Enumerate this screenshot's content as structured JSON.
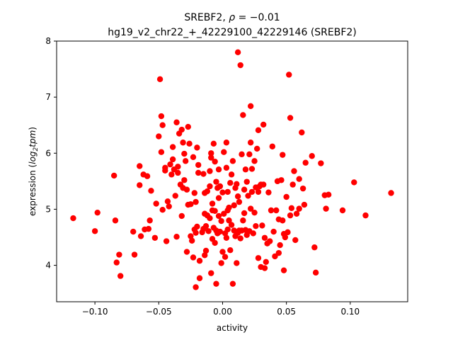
{
  "chart_data": {
    "type": "scatter",
    "title_line1_prefix": "SREBF2, ",
    "title_rho_symbol": "ρ",
    "title_rho_value": " = −0.01",
    "title_line2": "hg19_v2_chr22_+_42229100_42229146 (SREBF2)",
    "xlabel": "activity",
    "ylabel_prefix": "expression (",
    "ylabel_log": "log",
    "ylabel_sub": "2",
    "ylabel_tpm": "tpm",
    "ylabel_suffix": ")",
    "xlim": [
      -0.13,
      0.145
    ],
    "ylim": [
      3.35,
      8.0
    ],
    "xticks": [
      -0.1,
      -0.05,
      0.0,
      0.05,
      0.1
    ],
    "xtick_labels": [
      "−0.10",
      "−0.05",
      "0.00",
      "0.05",
      "0.10"
    ],
    "yticks": [
      4,
      5,
      6,
      7,
      8
    ],
    "ytick_labels": [
      "4",
      "5",
      "6",
      "7",
      "8"
    ],
    "grid": false,
    "marker_color": "#ff0000",
    "points": [
      [
        -0.117,
        4.84
      ],
      [
        -0.1,
        4.61
      ],
      [
        -0.098,
        4.94
      ],
      [
        -0.085,
        5.6
      ],
      [
        -0.084,
        4.8
      ],
      [
        -0.083,
        4.05
      ],
      [
        -0.081,
        4.19
      ],
      [
        -0.08,
        3.81
      ],
      [
        -0.07,
        4.6
      ],
      [
        -0.069,
        4.19
      ],
      [
        -0.065,
        5.77
      ],
      [
        -0.065,
        5.43
      ],
      [
        -0.064,
        4.52
      ],
      [
        -0.062,
        5.62
      ],
      [
        -0.061,
        4.64
      ],
      [
        -0.059,
        5.59
      ],
      [
        -0.058,
        4.65
      ],
      [
        -0.057,
        4.8
      ],
      [
        -0.056,
        5.33
      ],
      [
        -0.053,
        4.49
      ],
      [
        -0.052,
        5.1
      ],
      [
        -0.05,
        6.3
      ],
      [
        -0.049,
        7.32
      ],
      [
        -0.048,
        6.66
      ],
      [
        -0.048,
        6.02
      ],
      [
        -0.047,
        6.5
      ],
      [
        -0.047,
        4.99
      ],
      [
        -0.045,
        5.69
      ],
      [
        -0.045,
        5.74
      ],
      [
        -0.044,
        4.43
      ],
      [
        -0.043,
        5.14
      ],
      [
        -0.042,
        5.05
      ],
      [
        -0.041,
        5.8
      ],
      [
        -0.04,
        5.62
      ],
      [
        -0.039,
        6.11
      ],
      [
        -0.039,
        5.89
      ],
      [
        -0.038,
        5.71
      ],
      [
        -0.037,
        5.24
      ],
      [
        -0.036,
        4.51
      ],
      [
        -0.036,
        6.55
      ],
      [
        -0.035,
        5.76
      ],
      [
        -0.035,
        5.65
      ],
      [
        -0.034,
        6.35
      ],
      [
        -0.033,
        5.44
      ],
      [
        -0.032,
        6.42
      ],
      [
        -0.032,
        4.88
      ],
      [
        -0.031,
        5.38
      ],
      [
        -0.031,
        6.19
      ],
      [
        -0.03,
        5.99
      ],
      [
        -0.03,
        5.52
      ],
      [
        -0.029,
        5.86
      ],
      [
        -0.028,
        5.35
      ],
      [
        -0.028,
        4.24
      ],
      [
        -0.027,
        5.08
      ],
      [
        -0.027,
        6.47
      ],
      [
        -0.026,
        6.17
      ],
      [
        -0.025,
        4.52
      ],
      [
        -0.025,
        5.09
      ],
      [
        -0.024,
        4.44
      ],
      [
        -0.023,
        5.93
      ],
      [
        -0.023,
        4.14
      ],
      [
        -0.022,
        4.64
      ],
      [
        -0.022,
        5.29
      ],
      [
        -0.021,
        5.13
      ],
      [
        -0.021,
        4.58
      ],
      [
        -0.021,
        3.61
      ],
      [
        -0.02,
        4.69
      ],
      [
        -0.02,
        6.1
      ],
      [
        -0.019,
        5.79
      ],
      [
        -0.019,
        5.65
      ],
      [
        -0.018,
        3.77
      ],
      [
        -0.018,
        4.08
      ],
      [
        -0.016,
        4.59
      ],
      [
        -0.015,
        5.63
      ],
      [
        -0.015,
        4.65
      ],
      [
        -0.014,
        4.92
      ],
      [
        -0.014,
        5.29
      ],
      [
        -0.014,
        4.18
      ],
      [
        -0.013,
        4.26
      ],
      [
        -0.013,
        4.7
      ],
      [
        -0.012,
        5.32
      ],
      [
        -0.012,
        4.89
      ],
      [
        -0.011,
        4.61
      ],
      [
        -0.01,
        5.68
      ],
      [
        -0.01,
        4.84
      ],
      [
        -0.01,
        5.41
      ],
      [
        -0.009,
        5.92
      ],
      [
        -0.009,
        6.0
      ],
      [
        -0.009,
        3.86
      ],
      [
        -0.008,
        4.47
      ],
      [
        -0.008,
        4.98
      ],
      [
        -0.008,
        5.1
      ],
      [
        -0.007,
        4.67
      ],
      [
        -0.007,
        6.17
      ],
      [
        -0.006,
        5.85
      ],
      [
        -0.006,
        4.97
      ],
      [
        -0.006,
        4.4
      ],
      [
        -0.005,
        4.62
      ],
      [
        -0.005,
        5.49
      ],
      [
        -0.005,
        3.67
      ],
      [
        -0.004,
        4.57
      ],
      [
        -0.004,
        5.38
      ],
      [
        -0.003,
        4.88
      ],
      [
        -0.003,
        5.71
      ],
      [
        -0.003,
        5.2
      ],
      [
        -0.002,
        4.6
      ],
      [
        -0.002,
        5.41
      ],
      [
        -0.001,
        4.79
      ],
      [
        -0.001,
        4.04
      ],
      [
        0.0,
        4.24
      ],
      [
        0.0,
        5.3
      ],
      [
        0.001,
        6.02
      ],
      [
        0.001,
        4.92
      ],
      [
        0.002,
        4.15
      ],
      [
        0.002,
        4.57
      ],
      [
        0.003,
        4.49
      ],
      [
        0.003,
        5.74
      ],
      [
        0.003,
        6.19
      ],
      [
        0.004,
        4.64
      ],
      [
        0.004,
        5.31
      ],
      [
        0.004,
        4.98
      ],
      [
        0.005,
        4.8
      ],
      [
        0.005,
        5.03
      ],
      [
        0.006,
        5.47
      ],
      [
        0.006,
        4.27
      ],
      [
        0.007,
        5.62
      ],
      [
        0.007,
        4.72
      ],
      [
        0.008,
        3.67
      ],
      [
        0.008,
        5.86
      ],
      [
        0.009,
        5.07
      ],
      [
        0.009,
        4.62
      ],
      [
        0.01,
        5.38
      ],
      [
        0.01,
        4.52
      ],
      [
        0.011,
        4.04
      ],
      [
        0.011,
        5.45
      ],
      [
        0.012,
        4.58
      ],
      [
        0.012,
        5.23
      ],
      [
        0.012,
        7.8
      ],
      [
        0.013,
        4.62
      ],
      [
        0.013,
        5.13
      ],
      [
        0.014,
        4.48
      ],
      [
        0.014,
        7.57
      ],
      [
        0.015,
        4.62
      ],
      [
        0.015,
        5.98
      ],
      [
        0.016,
        6.68
      ],
      [
        0.016,
        4.8
      ],
      [
        0.017,
        5.35
      ],
      [
        0.017,
        4.93
      ],
      [
        0.018,
        5.71
      ],
      [
        0.018,
        4.63
      ],
      [
        0.019,
        5.49
      ],
      [
        0.019,
        4.54
      ],
      [
        0.02,
        5.24
      ],
      [
        0.021,
        5.98
      ],
      [
        0.021,
        4.61
      ],
      [
        0.022,
        6.84
      ],
      [
        0.022,
        6.19
      ],
      [
        0.022,
        5.01
      ],
      [
        0.023,
        5.72
      ],
      [
        0.023,
        5.31
      ],
      [
        0.024,
        4.57
      ],
      [
        0.025,
        5.86
      ],
      [
        0.025,
        4.94
      ],
      [
        0.026,
        5.39
      ],
      [
        0.026,
        4.7
      ],
      [
        0.027,
        6.08
      ],
      [
        0.028,
        6.41
      ],
      [
        0.028,
        5.31
      ],
      [
        0.028,
        4.13
      ],
      [
        0.029,
        5.41
      ],
      [
        0.03,
        5.44
      ],
      [
        0.03,
        3.97
      ],
      [
        0.031,
        4.71
      ],
      [
        0.032,
        6.51
      ],
      [
        0.032,
        5.44
      ],
      [
        0.033,
        3.95
      ],
      [
        0.033,
        4.49
      ],
      [
        0.034,
        4.06
      ],
      [
        0.035,
        4.39
      ],
      [
        0.036,
        5.3
      ],
      [
        0.037,
        4.43
      ],
      [
        0.038,
        4.98
      ],
      [
        0.039,
        6.12
      ],
      [
        0.04,
        4.6
      ],
      [
        0.041,
        4.16
      ],
      [
        0.042,
        4.98
      ],
      [
        0.043,
        5.5
      ],
      [
        0.044,
        4.82
      ],
      [
        0.044,
        4.22
      ],
      [
        0.045,
        4.36
      ],
      [
        0.046,
        5.52
      ],
      [
        0.047,
        5.97
      ],
      [
        0.047,
        4.8
      ],
      [
        0.048,
        4.56
      ],
      [
        0.048,
        3.91
      ],
      [
        0.049,
        4.5
      ],
      [
        0.05,
        5.22
      ],
      [
        0.051,
        4.59
      ],
      [
        0.052,
        7.4
      ],
      [
        0.053,
        6.63
      ],
      [
        0.053,
        4.89
      ],
      [
        0.054,
        5.02
      ],
      [
        0.055,
        5.44
      ],
      [
        0.056,
        5.68
      ],
      [
        0.057,
        4.45
      ],
      [
        0.058,
        4.92
      ],
      [
        0.06,
        5.54
      ],
      [
        0.06,
        5.01
      ],
      [
        0.062,
        6.37
      ],
      [
        0.063,
        5.37
      ],
      [
        0.064,
        5.08
      ],
      [
        0.065,
        5.83
      ],
      [
        0.07,
        5.95
      ],
      [
        0.072,
        4.32
      ],
      [
        0.073,
        3.87
      ],
      [
        0.077,
        5.82
      ],
      [
        0.08,
        5.25
      ],
      [
        0.081,
        5.01
      ],
      [
        0.083,
        5.26
      ],
      [
        0.094,
        4.98
      ],
      [
        0.103,
        5.48
      ],
      [
        0.112,
        4.89
      ],
      [
        0.132,
        5.29
      ]
    ]
  }
}
